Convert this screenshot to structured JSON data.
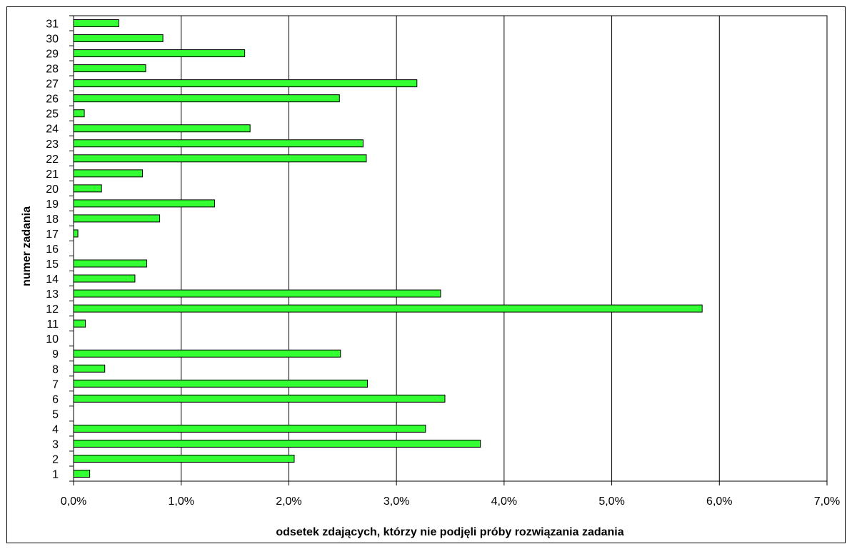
{
  "chart_data": {
    "type": "bar",
    "orientation": "horizontal",
    "title": "",
    "xlabel": "odsetek zdających, którzy nie podjęli próby rozwiązania zadania",
    "ylabel": "numer zadania",
    "xlim": [
      0,
      7
    ],
    "x_ticks": [
      "0,0%",
      "1,0%",
      "2,0%",
      "3,0%",
      "4,0%",
      "5,0%",
      "6,0%",
      "7,0%"
    ],
    "categories": [
      "1",
      "2",
      "3",
      "4",
      "5",
      "6",
      "7",
      "8",
      "9",
      "10",
      "11",
      "12",
      "13",
      "14",
      "15",
      "16",
      "17",
      "18",
      "19",
      "20",
      "21",
      "22",
      "23",
      "24",
      "25",
      "26",
      "27",
      "28",
      "29",
      "30",
      "31"
    ],
    "values": [
      0.15,
      2.05,
      3.78,
      3.27,
      0.0,
      3.45,
      2.73,
      0.29,
      2.48,
      0.0,
      0.11,
      5.84,
      3.41,
      0.57,
      0.68,
      0.0,
      0.04,
      0.8,
      1.31,
      0.26,
      0.64,
      2.72,
      2.69,
      1.64,
      0.1,
      2.47,
      3.19,
      0.67,
      1.59,
      0.83,
      0.42
    ],
    "unit": "%",
    "grid": "vertical",
    "legend": "none",
    "bar_color": "#33ff33"
  }
}
